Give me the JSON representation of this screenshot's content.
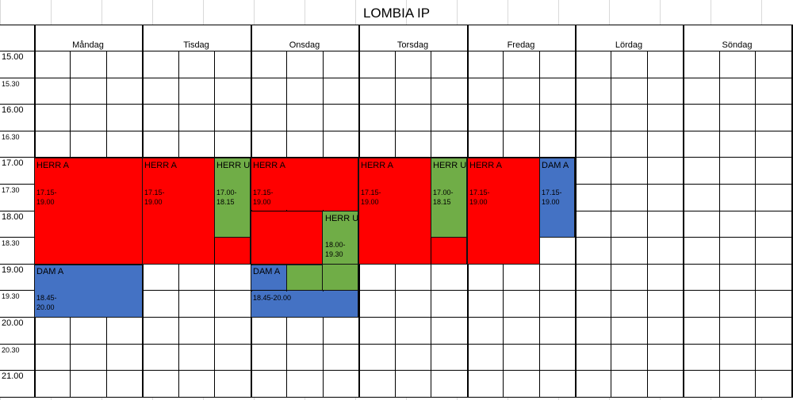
{
  "title": "LOMBIA IP",
  "days": [
    "Måndag",
    "Tisdag",
    "Onsdag",
    "Torsdag",
    "Fredag",
    "Lördag",
    "Söndag"
  ],
  "times": [
    "15.00",
    "15.30",
    "16.00",
    "16.30",
    "17.00",
    "17.30",
    "18.00",
    "18.30",
    "19.00",
    "19.30",
    "20.00",
    "20.30",
    "21.00"
  ],
  "bookings": [
    {
      "label": "HERR A",
      "time": "17.15-\n19.00",
      "color": "#ff0000"
    },
    {
      "label": "DAM A",
      "time": "18.45-\n20.00",
      "color": "#4472c4"
    },
    {
      "label": "HERR A",
      "time": "17.15-\n19.00",
      "color": "#ff0000"
    },
    {
      "label": "HERR U",
      "time": "17.00-\n18.15",
      "color": "#70ad47"
    },
    {
      "label": "HERR A",
      "time": "17.15-\n19.00",
      "color": "#ff0000"
    },
    {
      "label": "HERR U",
      "time": "18.00-\n19.30",
      "color": "#70ad47"
    },
    {
      "label": "DAM A",
      "time": "18.45-20.00",
      "color": "#4472c4"
    },
    {
      "label": "HERR A",
      "time": "17.15-\n19.00",
      "color": "#ff0000"
    },
    {
      "label": "HERR U",
      "time": "17.00-\n18.15",
      "color": "#70ad47"
    },
    {
      "label": "HERR A",
      "time": "17.15-\n19.00",
      "color": "#ff0000"
    },
    {
      "label": "DAM A",
      "time": "17.15-\n19.00",
      "color": "#4472c4"
    }
  ]
}
